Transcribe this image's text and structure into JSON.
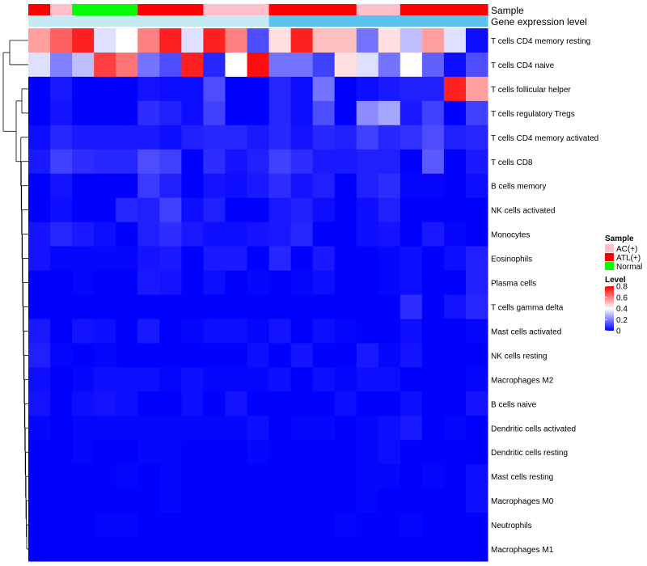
{
  "chart_data": {
    "type": "heatmap",
    "title": "",
    "annotation_tracks": [
      {
        "name": "Sample",
        "values": [
          "ATL(+)",
          "AC(+)",
          "Normal",
          "Normal",
          "Normal",
          "ATL(+)",
          "ATL(+)",
          "ATL(+)",
          "AC(+)",
          "AC(+)",
          "AC(+)",
          "ATL(+)",
          "ATL(+)",
          "ATL(+)",
          "ATL(+)",
          "AC(+)",
          "AC(+)",
          "ATL(+)",
          "ATL(+)",
          "ATL(+)",
          "ATL(+)"
        ]
      },
      {
        "name": "Gene expression level",
        "values": [
          "low",
          "low",
          "low",
          "low",
          "low",
          "low",
          "low",
          "low",
          "low",
          "low",
          "low",
          "high",
          "high",
          "high",
          "high",
          "high",
          "high",
          "high",
          "high",
          "high",
          "high"
        ]
      }
    ],
    "rows": [
      "T cells CD4 memory resting",
      "T cells CD4 naive",
      "T cells follicular helper",
      "T cells regulatory  Tregs",
      "T cells CD4 memory activated",
      "T cells CD8",
      "B cells memory",
      "NK cells activated",
      "Monocytes",
      "Eosinophils",
      "Plasma cells",
      "T cells gamma delta",
      "Mast cells activated",
      "NK cells resting",
      "Macrophages M2",
      "B cells naive",
      "Dendritic cells activated",
      "Dendritic cells resting",
      "Mast cells resting",
      "Macrophages M0",
      "Neutrophils",
      "Macrophages M1"
    ],
    "values": [
      [
        0.55,
        0.65,
        0.75,
        0.35,
        0.4,
        0.6,
        0.75,
        0.35,
        0.75,
        0.6,
        0.12,
        0.45,
        0.75,
        0.5,
        0.5,
        0.18,
        0.45,
        0.3,
        0.55,
        0.35,
        0.02
      ],
      [
        0.35,
        0.2,
        0.3,
        0.7,
        0.62,
        0.18,
        0.12,
        0.75,
        0.06,
        0.4,
        0.78,
        0.18,
        0.18,
        0.1,
        0.45,
        0.35,
        0.18,
        0.4,
        0.15,
        0.02,
        0.12
      ],
      [
        0.0,
        0.04,
        0.0,
        0.0,
        0.0,
        0.03,
        0.02,
        0.02,
        0.12,
        0.0,
        0.0,
        0.06,
        0.02,
        0.18,
        0.0,
        0.02,
        0.04,
        0.05,
        0.05,
        0.75,
        0.55
      ],
      [
        0.0,
        0.03,
        0.0,
        0.0,
        0.0,
        0.07,
        0.05,
        0.02,
        0.1,
        0.0,
        0.0,
        0.06,
        0.02,
        0.12,
        0.0,
        0.22,
        0.26,
        0.04,
        0.1,
        0.0,
        0.1
      ],
      [
        0.02,
        0.06,
        0.04,
        0.04,
        0.04,
        0.04,
        0.02,
        0.05,
        0.06,
        0.06,
        0.04,
        0.06,
        0.03,
        0.06,
        0.05,
        0.1,
        0.06,
        0.08,
        0.12,
        0.05,
        0.06
      ],
      [
        0.04,
        0.1,
        0.07,
        0.06,
        0.06,
        0.12,
        0.1,
        0.0,
        0.07,
        0.03,
        0.05,
        0.1,
        0.07,
        0.04,
        0.04,
        0.05,
        0.05,
        0.0,
        0.14,
        0.0,
        0.04
      ],
      [
        0.0,
        0.03,
        0.0,
        0.0,
        0.0,
        0.09,
        0.05,
        0.0,
        0.03,
        0.02,
        0.04,
        0.07,
        0.03,
        0.05,
        0.0,
        0.05,
        0.07,
        0.01,
        0.01,
        0.0,
        0.02
      ],
      [
        0.0,
        0.02,
        0.0,
        0.0,
        0.06,
        0.05,
        0.1,
        0.02,
        0.05,
        0.0,
        0.0,
        0.04,
        0.05,
        0.02,
        0.0,
        0.02,
        0.05,
        0.0,
        0.0,
        0.0,
        0.0
      ],
      [
        0.03,
        0.06,
        0.04,
        0.02,
        0.0,
        0.05,
        0.07,
        0.04,
        0.02,
        0.02,
        0.03,
        0.04,
        0.06,
        0.0,
        0.0,
        0.02,
        0.03,
        0.0,
        0.04,
        0.01,
        0.0
      ],
      [
        0.03,
        0.01,
        0.01,
        0.01,
        0.01,
        0.03,
        0.04,
        0.0,
        0.04,
        0.04,
        0.0,
        0.06,
        0.0,
        0.04,
        0.0,
        0.0,
        0.01,
        0.02,
        0.0,
        0.02,
        0.05
      ],
      [
        0.0,
        0.0,
        0.01,
        0.0,
        0.0,
        0.04,
        0.03,
        0.0,
        0.02,
        0.0,
        0.01,
        0.0,
        0.01,
        0.02,
        0.0,
        0.0,
        0.01,
        0.02,
        0.0,
        0.0,
        0.05
      ],
      [
        0.0,
        0.0,
        0.0,
        0.0,
        0.0,
        0.0,
        0.0,
        0.0,
        0.0,
        0.0,
        0.0,
        0.0,
        0.0,
        0.0,
        0.0,
        0.0,
        0.0,
        0.07,
        0.0,
        0.03,
        0.06
      ],
      [
        0.04,
        0.0,
        0.03,
        0.02,
        0.0,
        0.04,
        0.0,
        0.01,
        0.02,
        0.02,
        0.01,
        0.03,
        0.0,
        0.02,
        0.01,
        0.0,
        0.0,
        0.02,
        0.0,
        0.0,
        0.01
      ],
      [
        0.05,
        0.01,
        0.0,
        0.01,
        0.0,
        0.0,
        0.0,
        0.0,
        0.0,
        0.0,
        0.02,
        0.0,
        0.03,
        0.0,
        0.0,
        0.04,
        0.01,
        0.03,
        0.0,
        0.0,
        0.0
      ],
      [
        0.02,
        0.0,
        0.01,
        0.02,
        0.02,
        0.02,
        0.01,
        0.02,
        0.01,
        0.01,
        0.01,
        0.02,
        0.0,
        0.02,
        0.01,
        0.02,
        0.02,
        0.0,
        0.0,
        0.0,
        0.01
      ],
      [
        0.03,
        0.0,
        0.02,
        0.03,
        0.02,
        0.0,
        0.0,
        0.02,
        0.0,
        0.03,
        0.0,
        0.0,
        0.0,
        0.0,
        0.02,
        0.0,
        0.0,
        0.02,
        0.0,
        0.0,
        0.03
      ],
      [
        0.01,
        0.0,
        0.01,
        0.01,
        0.01,
        0.01,
        0.01,
        0.01,
        0.01,
        0.01,
        0.02,
        0.0,
        0.01,
        0.01,
        0.0,
        0.01,
        0.02,
        0.04,
        0.0,
        0.01,
        0.0
      ],
      [
        0.0,
        0.0,
        0.01,
        0.0,
        0.0,
        0.01,
        0.01,
        0.0,
        0.0,
        0.0,
        0.01,
        0.0,
        0.0,
        0.0,
        0.0,
        0.01,
        0.02,
        0.0,
        0.0,
        0.0,
        0.0
      ],
      [
        0.0,
        0.0,
        0.0,
        0.0,
        0.01,
        0.0,
        0.01,
        0.0,
        0.0,
        0.0,
        0.0,
        0.0,
        0.0,
        0.0,
        0.0,
        0.01,
        0.01,
        0.0,
        0.01,
        0.0,
        0.02
      ],
      [
        0.0,
        0.0,
        0.0,
        0.0,
        0.0,
        0.0,
        0.01,
        0.0,
        0.0,
        0.0,
        0.0,
        0.0,
        0.0,
        0.0,
        0.0,
        0.01,
        0.0,
        0.0,
        0.0,
        0.0,
        0.02
      ],
      [
        0.0,
        0.0,
        0.0,
        0.01,
        0.01,
        0.0,
        0.0,
        0.0,
        0.0,
        0.0,
        0.0,
        0.0,
        0.0,
        0.0,
        0.01,
        0.0,
        0.0,
        0.01,
        0.0,
        0.0,
        0.0
      ],
      [
        0.0,
        0.0,
        0.0,
        0.0,
        0.0,
        0.0,
        0.0,
        0.0,
        0.0,
        0.0,
        0.0,
        0.0,
        0.0,
        0.0,
        0.0,
        0.0,
        0.0,
        0.0,
        0.0,
        0.0,
        0.0
      ]
    ],
    "color_scale": {
      "min": 0,
      "max": 0.8,
      "low": "#0000ff",
      "mid": "#ffffff",
      "mid_value": 0.4,
      "high": "#ff0000"
    },
    "row_dendrogram": true,
    "legend": {
      "sample_title": "Sample",
      "sample_entries": [
        {
          "label": "AC(+)",
          "color": "#ffc0cb"
        },
        {
          "label": "ATL(+)",
          "color": "#ff0000"
        },
        {
          "label": "Normal",
          "color": "#00ff00"
        }
      ],
      "level_title": "Level",
      "level_ticks": [
        0,
        0.2,
        0.4,
        0.6,
        0.8
      ],
      "level_tick_labels": [
        "0",
        "0.2",
        "0.4",
        "0.6",
        "0.8"
      ]
    },
    "gene_expression_colors": {
      "low": "#c6e9f6",
      "high": "#5bc4ee"
    }
  }
}
